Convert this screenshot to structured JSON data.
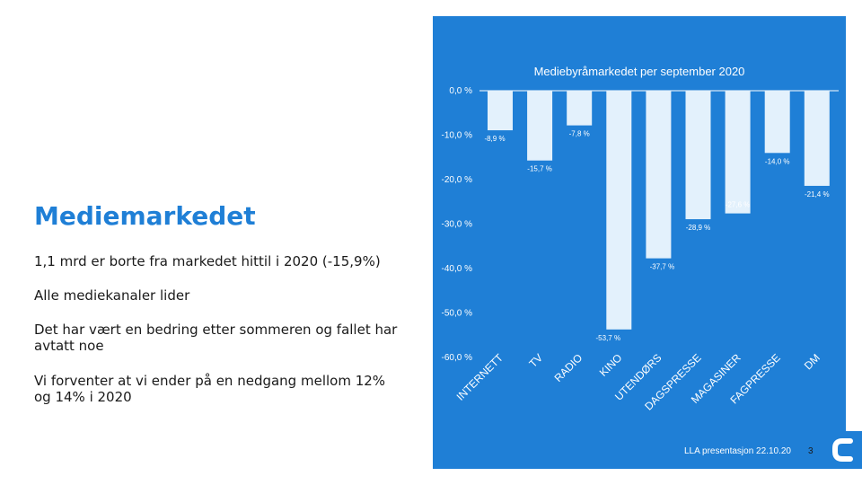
{
  "slide": {
    "title": "Mediemarkedet",
    "bullets": [
      "1,1 mrd er borte fra markedet hittil i 2020 (-15,9%)",
      "Alle mediekanaler lider",
      "Det har vært en bedring etter sommeren og fallet har avtatt noe",
      "Vi forventer at vi ender på en nedgang mellom  12% og 14% i 2020"
    ],
    "footer": "LLA presentasjon 22.10.20",
    "page_number": "3",
    "logo_icon": "c-logo-icon"
  },
  "colors": {
    "accent": "#1f7fd6",
    "bar": "#e3f1fc",
    "text": "#1a1a1a",
    "white": "#ffffff"
  },
  "chart_data": {
    "type": "bar",
    "title": "Mediebyråmarkedet per september 2020",
    "categories": [
      "INTERNETT",
      "TV",
      "RADIO",
      "KINO",
      "UTENDØRS",
      "DAGSPRESSE",
      "MAGASINER",
      "FAGPRESSE",
      "DM"
    ],
    "values": [
      -8.9,
      -15.7,
      -7.8,
      -53.7,
      -37.7,
      -28.9,
      -27.6,
      -14.0,
      -21.4
    ],
    "value_labels": [
      "-8,9 %",
      "-15,7 %",
      "-7,8 %",
      "-53,7 %",
      "-37,7 %",
      "-28,9 %",
      "-27,6 %",
      "-14,0 %",
      "-21,4 %"
    ],
    "ylim": [
      -60,
      0
    ],
    "yticks": [
      0,
      -10,
      -20,
      -30,
      -40,
      -50,
      -60
    ],
    "ytick_labels": [
      "0,0 %",
      "-10,0 %",
      "-20,0 %",
      "-30,0 %",
      "-40,0 %",
      "-50,0 %",
      "-60,0 %"
    ],
    "grid": false,
    "legend": "none"
  }
}
